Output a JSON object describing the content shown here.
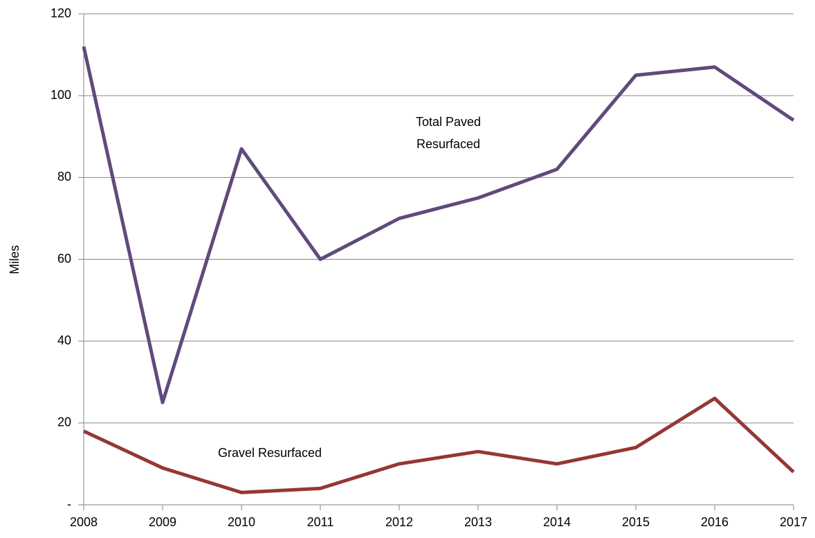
{
  "chart_data": {
    "type": "line",
    "y_label": "Miles",
    "x": [
      2008,
      2009,
      2010,
      2011,
      2012,
      2013,
      2014,
      2015,
      2016,
      2017
    ],
    "xlim": [
      2008,
      2017
    ],
    "xticks": [
      2008,
      2009,
      2010,
      2011,
      2012,
      2013,
      2014,
      2015,
      2016,
      2017
    ],
    "ylim": [
      0,
      120
    ],
    "yticks": [
      {
        "value": 0,
        "label": "-"
      },
      20,
      40,
      60,
      80,
      100,
      120
    ],
    "grid": true,
    "series": [
      {
        "name": "Total Paved Resurfaced",
        "color": "#604a7b",
        "values": [
          112,
          25,
          87,
          60,
          70,
          75,
          82,
          105,
          107,
          94
        ]
      },
      {
        "name": "Gravel Resurfaced",
        "color": "#953735",
        "values": [
          18,
          9,
          3,
          4,
          10,
          13,
          10,
          14,
          26,
          8
        ]
      }
    ]
  }
}
